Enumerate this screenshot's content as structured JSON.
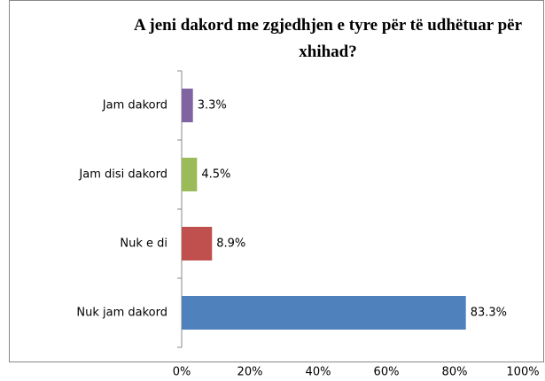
{
  "chart_data": {
    "type": "bar",
    "orientation": "horizontal",
    "title": "A jeni dakord me zgjedhjen e tyre për të udhëtuar për xhihad?",
    "categories": [
      "Jam dakord",
      "Jam disi dakord",
      "Nuk e di",
      "Nuk jam dakord"
    ],
    "values": [
      3.3,
      4.5,
      8.9,
      83.3
    ],
    "value_labels": [
      "3.3%",
      "4.5%",
      "8.9%",
      "83.3%"
    ],
    "colors": [
      "#8064a2",
      "#9bbb59",
      "#c0504d",
      "#4f81bd"
    ],
    "xlim": [
      0,
      100
    ],
    "xticks": [
      {
        "value": 0,
        "label": "0%"
      },
      {
        "value": 20,
        "label": "20%"
      },
      {
        "value": 40,
        "label": "40%"
      },
      {
        "value": 60,
        "label": "60%"
      },
      {
        "value": 80,
        "label": "80%"
      },
      {
        "value": 100,
        "label": "100%"
      }
    ],
    "grid": false
  }
}
